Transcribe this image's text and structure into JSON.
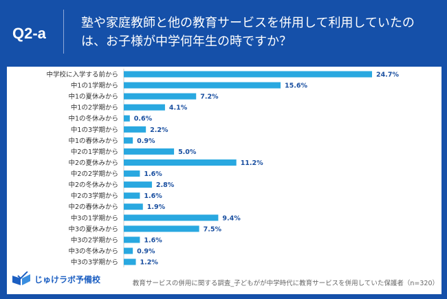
{
  "header": {
    "question_id": "Q2-a",
    "title": "塾や家庭教師と他の教育サービスを併用して利用していたのは、お子様が中学何年生の時ですか？"
  },
  "footer": {
    "logo_text": "じゅけラボ予備校",
    "note": "教育サービスの併用に関する調査_子どもがが中学時代に教育サービスを併用していた保護者（n=320）"
  },
  "colors": {
    "background": "#1550a9",
    "bar": "#29a8e0",
    "value_label": "#1a4fa0"
  },
  "chart_data": {
    "type": "bar",
    "orientation": "horizontal",
    "unit": "%",
    "categories": [
      "中学校に入学する前から",
      "中1の1学期から",
      "中1の夏休みから",
      "中1の2学期から",
      "中1の冬休みから",
      "中1の3学期から",
      "中1の春休みから",
      "中2の1学期から",
      "中2の夏休みから",
      "中2の2学期から",
      "中2の冬休みから",
      "中2の3学期から",
      "中2の春休みから",
      "中3の1学期から",
      "中3の夏休みから",
      "中3の2学期から",
      "中3の冬休みから",
      "中3の3学期から"
    ],
    "values": [
      24.7,
      15.6,
      7.2,
      4.1,
      0.6,
      2.2,
      0.9,
      5.0,
      11.2,
      1.6,
      2.8,
      1.6,
      1.9,
      9.4,
      7.5,
      1.6,
      0.9,
      1.2
    ],
    "labels": [
      "24.7%",
      "15.6%",
      "7.2%",
      "4.1%",
      "0.6%",
      "2.2%",
      "0.9%",
      "5.0%",
      "11.2%",
      "1.6%",
      "2.8%",
      "1.6%",
      "1.9%",
      "9.4%",
      "7.5%",
      "1.6%",
      "0.9%",
      "1.2%"
    ]
  }
}
